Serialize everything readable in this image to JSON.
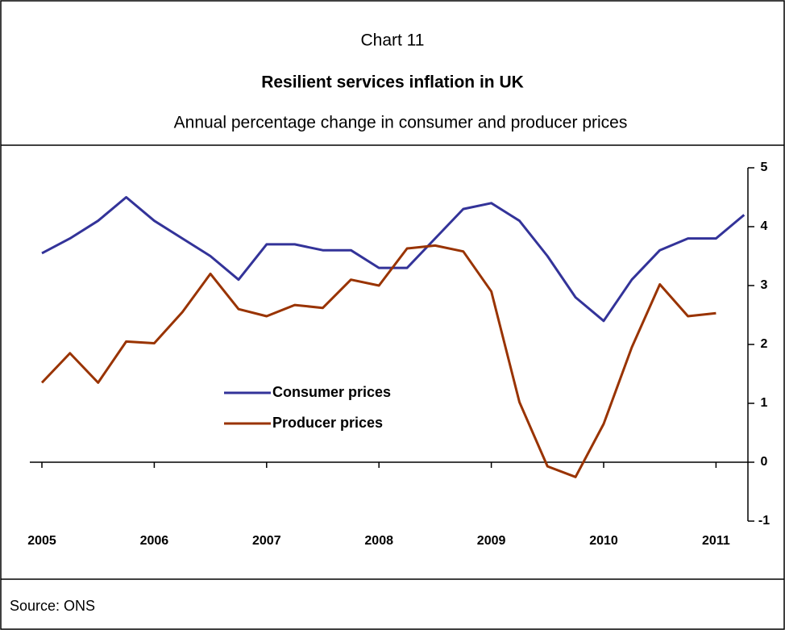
{
  "chart_data": {
    "type": "line",
    "chart_label": "Chart 11",
    "title": "Resilient services inflation in UK",
    "subtitle": "Annual percentage change in consumer and producer prices",
    "source": "Source: ONS",
    "categories": [
      "2005",
      null,
      null,
      null,
      "2006",
      null,
      null,
      null,
      "2007",
      null,
      null,
      null,
      "2008",
      null,
      null,
      null,
      "2009",
      null,
      null,
      null,
      "2010",
      null,
      null,
      null,
      "2011",
      null
    ],
    "series": [
      {
        "name": "Consumer prices",
        "color": "#333399",
        "values": [
          3.55,
          3.8,
          4.1,
          4.5,
          4.1,
          3.8,
          3.5,
          3.1,
          3.7,
          3.7,
          3.6,
          3.6,
          3.3,
          3.3,
          3.8,
          4.3,
          4.4,
          4.1,
          3.5,
          2.8,
          2.4,
          3.1,
          3.6,
          3.8,
          3.8,
          4.2
        ]
      },
      {
        "name": "Producer prices",
        "color": "#993300",
        "values": [
          1.35,
          1.85,
          1.35,
          2.05,
          2.02,
          2.55,
          3.2,
          2.6,
          2.48,
          2.67,
          2.62,
          3.1,
          3.0,
          3.63,
          3.68,
          3.58,
          2.9,
          1.02,
          -0.07,
          -0.25,
          0.65,
          1.95,
          3.02,
          2.48,
          2.53,
          null
        ]
      }
    ],
    "ylim": [
      -1,
      5
    ],
    "yticks": [
      -1,
      0,
      1,
      2,
      3,
      4,
      5
    ],
    "y_axis_side": "right"
  }
}
